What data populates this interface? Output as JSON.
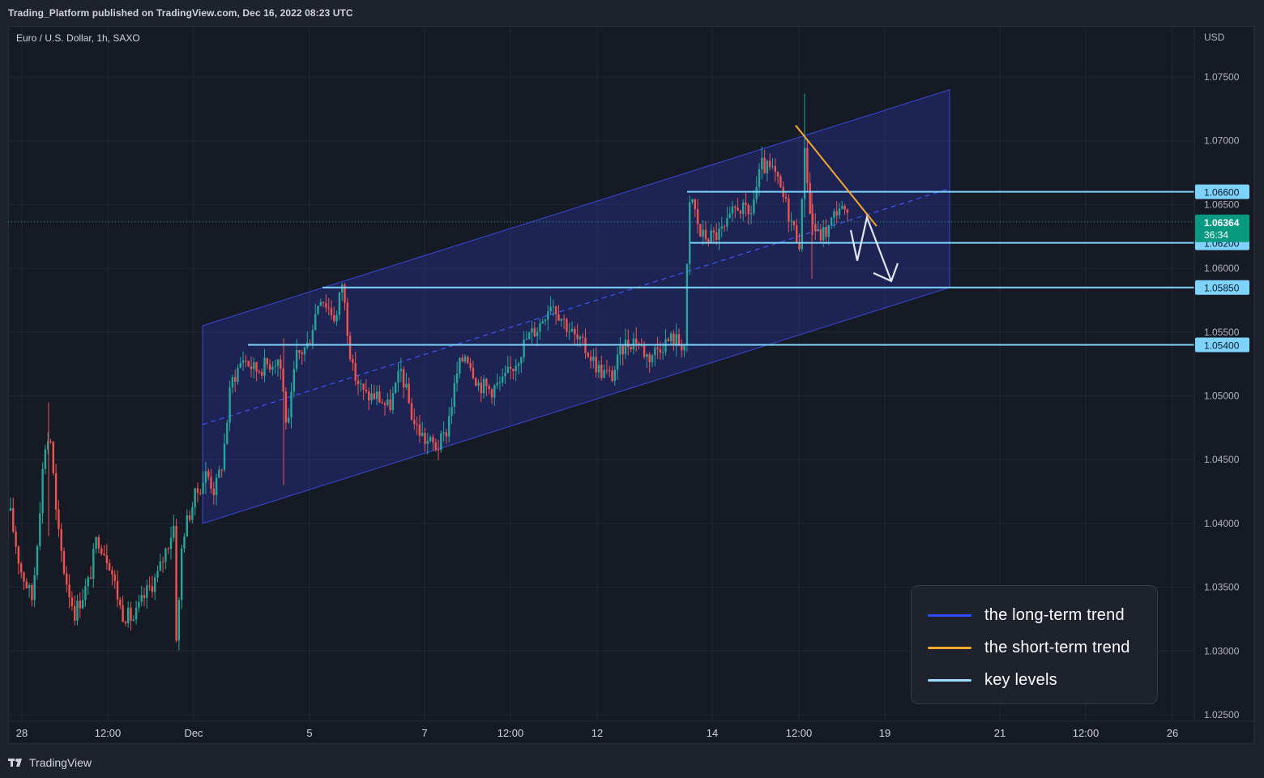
{
  "header": {
    "publish_note": "Trading_Platform published on TradingView.com, Dec 16, 2022 08:23 UTC"
  },
  "footer": {
    "brand": "TradingView"
  },
  "chart_data": {
    "type": "candlestick",
    "title": "Euro / U.S. Dollar, 1h, SAXO",
    "currency": "USD",
    "y_ticks": [
      "1.07500",
      "1.07000",
      "1.06500",
      "1.06000",
      "1.05500",
      "1.05000",
      "1.04500",
      "1.04000",
      "1.03500",
      "1.03000",
      "1.02500"
    ],
    "ylim": [
      1.024,
      1.078
    ],
    "x_ticks": [
      "28",
      "12:00",
      "Dec",
      "5",
      "7",
      "12:00",
      "12",
      "14",
      "12:00",
      "19",
      "21",
      "12:00",
      "26"
    ],
    "key_levels": [
      {
        "label": "1.06600",
        "value": 1.066
      },
      {
        "label": "1.06200",
        "value": 1.062
      },
      {
        "label": "1.05850",
        "value": 1.0585
      },
      {
        "label": "1.05400",
        "value": 1.054
      }
    ],
    "current_price": {
      "label": "1.06364",
      "value": 1.06364,
      "countdown": "36:34"
    },
    "colors": {
      "up": "#26a69a",
      "down": "#ef5350",
      "channel": "#2f3bb5",
      "short_trend": "#f7a72c",
      "key_level": "#7dd3fc",
      "projection": "#e3e6f5"
    },
    "channel": {
      "lower_start": {
        "date": "Dec 1",
        "price": 1.04
      },
      "upper_start": {
        "date": "Dec 1",
        "price": 1.0555
      },
      "lower_end": {
        "date": "Dec 20",
        "price": 1.0585
      },
      "upper_end": {
        "date": "Dec 20",
        "price": 1.074
      }
    },
    "short_term_trend": {
      "start": 1.0712,
      "end": 1.0633
    },
    "projection_path": [
      1.063,
      1.0606,
      1.064,
      1.059
    ]
  },
  "legend": {
    "items": [
      {
        "label": "the long-term trend",
        "color": "#2f4bff"
      },
      {
        "label": "the short-term trend",
        "color": "#f7a72c"
      },
      {
        "label": "key levels",
        "color": "#9fdcff"
      }
    ]
  }
}
